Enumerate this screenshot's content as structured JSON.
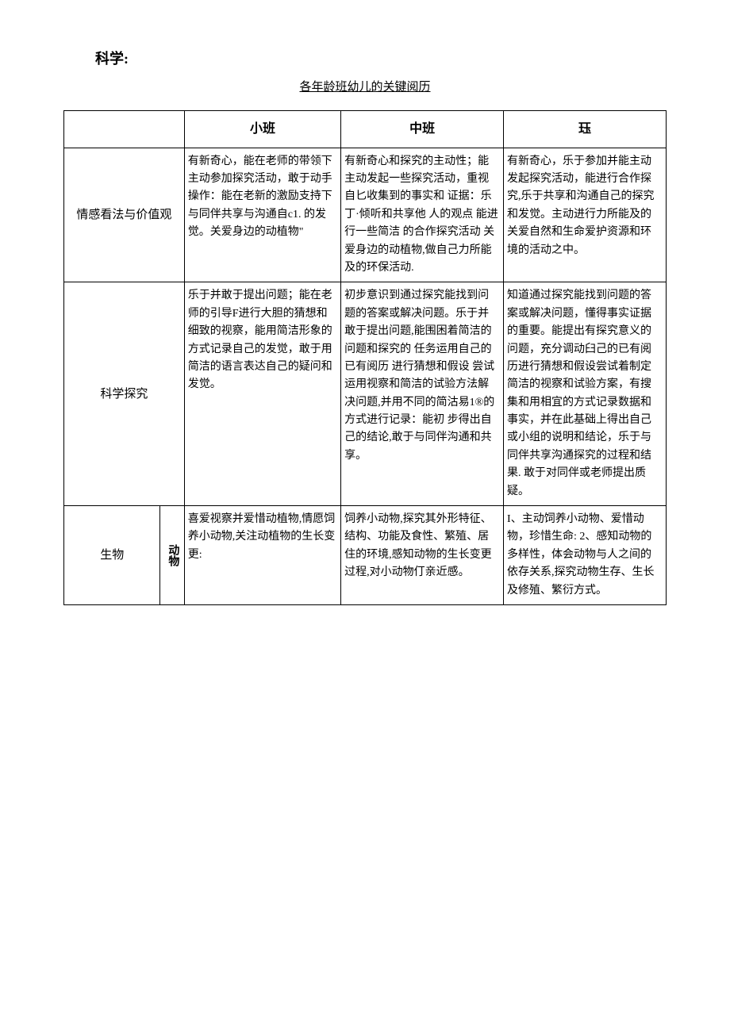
{
  "header": {
    "subject_label": "科学:",
    "table_title": "各年龄班幼儿的关键阅历"
  },
  "columns": {
    "blank": "",
    "small": "小班",
    "middle": "中班",
    "large": "珏"
  },
  "rows": [
    {
      "header": "情感看法与价值观",
      "small": "有新奇心，能在老师的带领下主动参加探究活动，敢于动手操作：能在老新的激励支持下与同伴共享与沟通自c1. 的发觉。关爱身边的动植物\"",
      "middle": "有新奇心和探究的主动性；能主动发起一些探究活动，重视自匕收集到的事实和 证据：乐丁·倾听和共享他 人的观点 能进行一些简洁 的合作探究活动 关爱身边的动植物,做自己力所能及的环保活动.",
      "large": "有新奇心，乐于参加并能主动发起探究活动，能进行合作探究,乐于共享和沟通自己的探究和发觉。主动进行力所能及的关爱自然和生命爱护资源和环境的活动之中。"
    },
    {
      "header": "科学探究",
      "small": "乐于并敢于提出问题；能在老师的引导F进行大胆的猜想和细致的视察，能用简洁形象的方式记录自己的发觉，敢于用简洁的语言表达自己的疑问和发觉。",
      "middle": "初步意识到通过探究能找到问题的答案或解决问题。乐于并敢于提出问题,能围困着简洁的问题和探究的 任务运用自己的已有阅历 进行猜想和假设 尝试运用视察和简洁的试验方法解决问题,并用不同的简沽易1®的方式进行记录：能初 步得出自己的结论,敢于与同伴沟通和共享。",
      "large": "知道通过探究能找到问题的答案或解决问题，懂得事实证据的重要。能提出有探究意义的问题，充分调动臼己的已有阅历进行猜想和假设尝试着制定简洁的视察和试验方案，有搜集和用相宜的方式记录数据和事实，并在此基础上得出自己或小组的说明和结论，乐于与同伴共享沟通探究的过程和结果.\n敢于对同伴或老师提出质疑。"
    },
    {
      "header": "生物",
      "sub": "动物",
      "small": "喜爱视察并爱惜动植物,情愿饲养小动物,关注动植物的生长变更:",
      "middle": "饲养小动物,探究其外形特征、结构、功能及食性、繁殖、居住的环境,感知动物的生长变更过程,对小动物仃亲近感。",
      "large": "I、主动饲养小动物、爱惜动物，珍惜生命:\n2、感知动物的多样性，体会动物与人之间的依存关系,探究动物生存、生长及修殖、繁衍方式。"
    }
  ],
  "style": {
    "background_color": "#ffffff",
    "border_color": "#000000",
    "text_color": "#000000",
    "font_family": "SimSun",
    "title_fontsize": 15,
    "header_fontsize": 16,
    "cell_fontsize": 14,
    "subject_fontsize": 18
  }
}
